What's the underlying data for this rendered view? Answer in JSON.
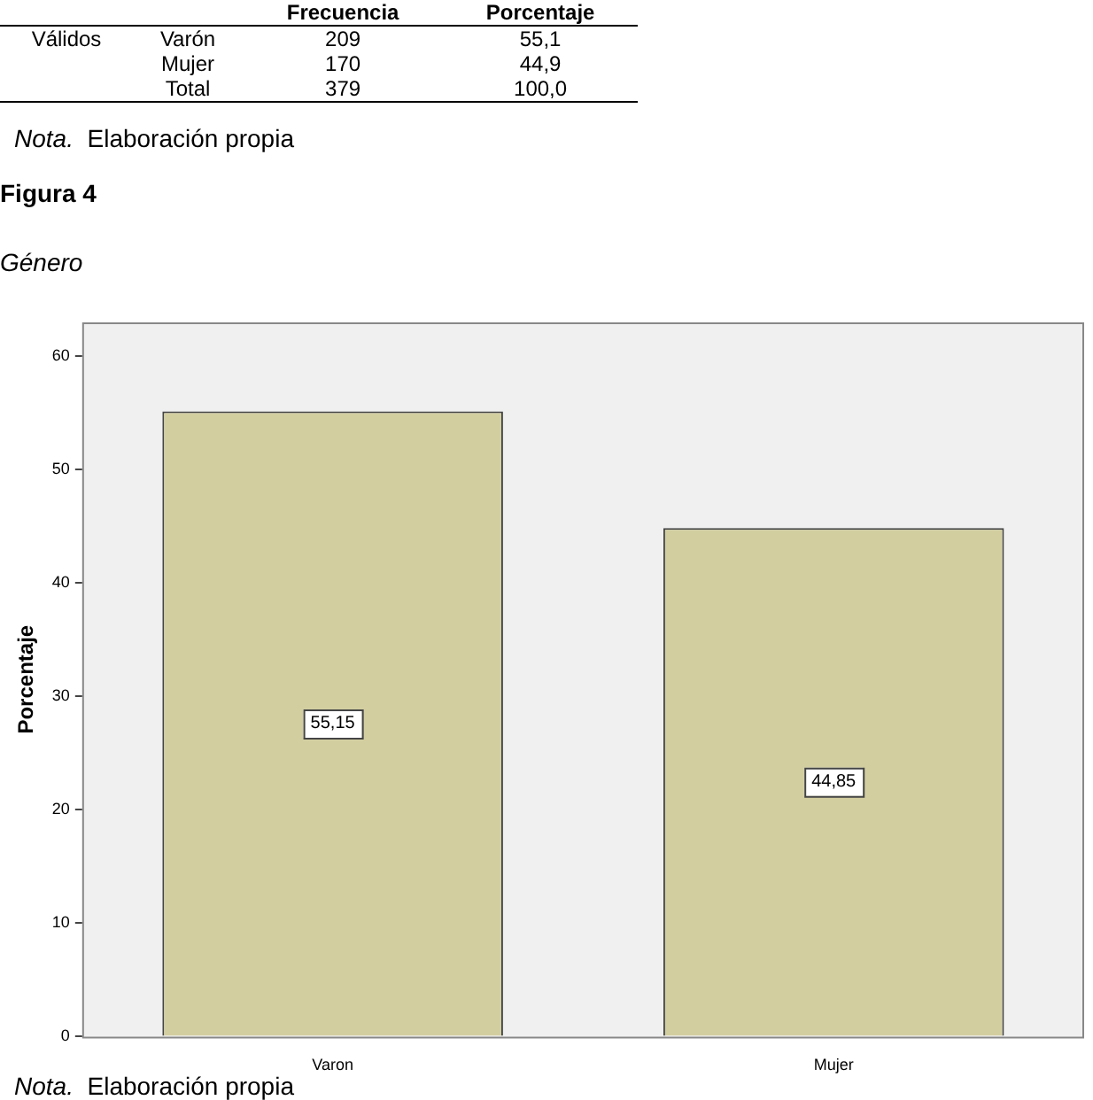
{
  "chart_data": [
    {
      "type": "other",
      "annotations": [
        "Frecuencia",
        "Porcentaje",
        "Válidos",
        "Varón",
        "209",
        "55,1",
        "Mujer",
        "170",
        "44,9",
        "Total",
        "379",
        "100,0",
        "Nota.  Elaboración propia"
      ]
    },
    {
      "type": "bar",
      "title": "Figura 4",
      "subtitle": "Género",
      "ylabel": "Porcentaje",
      "categories": [
        "Varon",
        "Mujer"
      ],
      "values": [
        55.15,
        44.85
      ],
      "value_labels": [
        "55,15",
        "44,85"
      ],
      "color": "#d3cea0",
      "ylim": [
        0,
        63
      ],
      "yticks": [
        0,
        10,
        20,
        30,
        40,
        50,
        60
      ],
      "grid": false,
      "legend": false,
      "annotations": [
        "Nota.  Elaboración propia"
      ]
    }
  ]
}
